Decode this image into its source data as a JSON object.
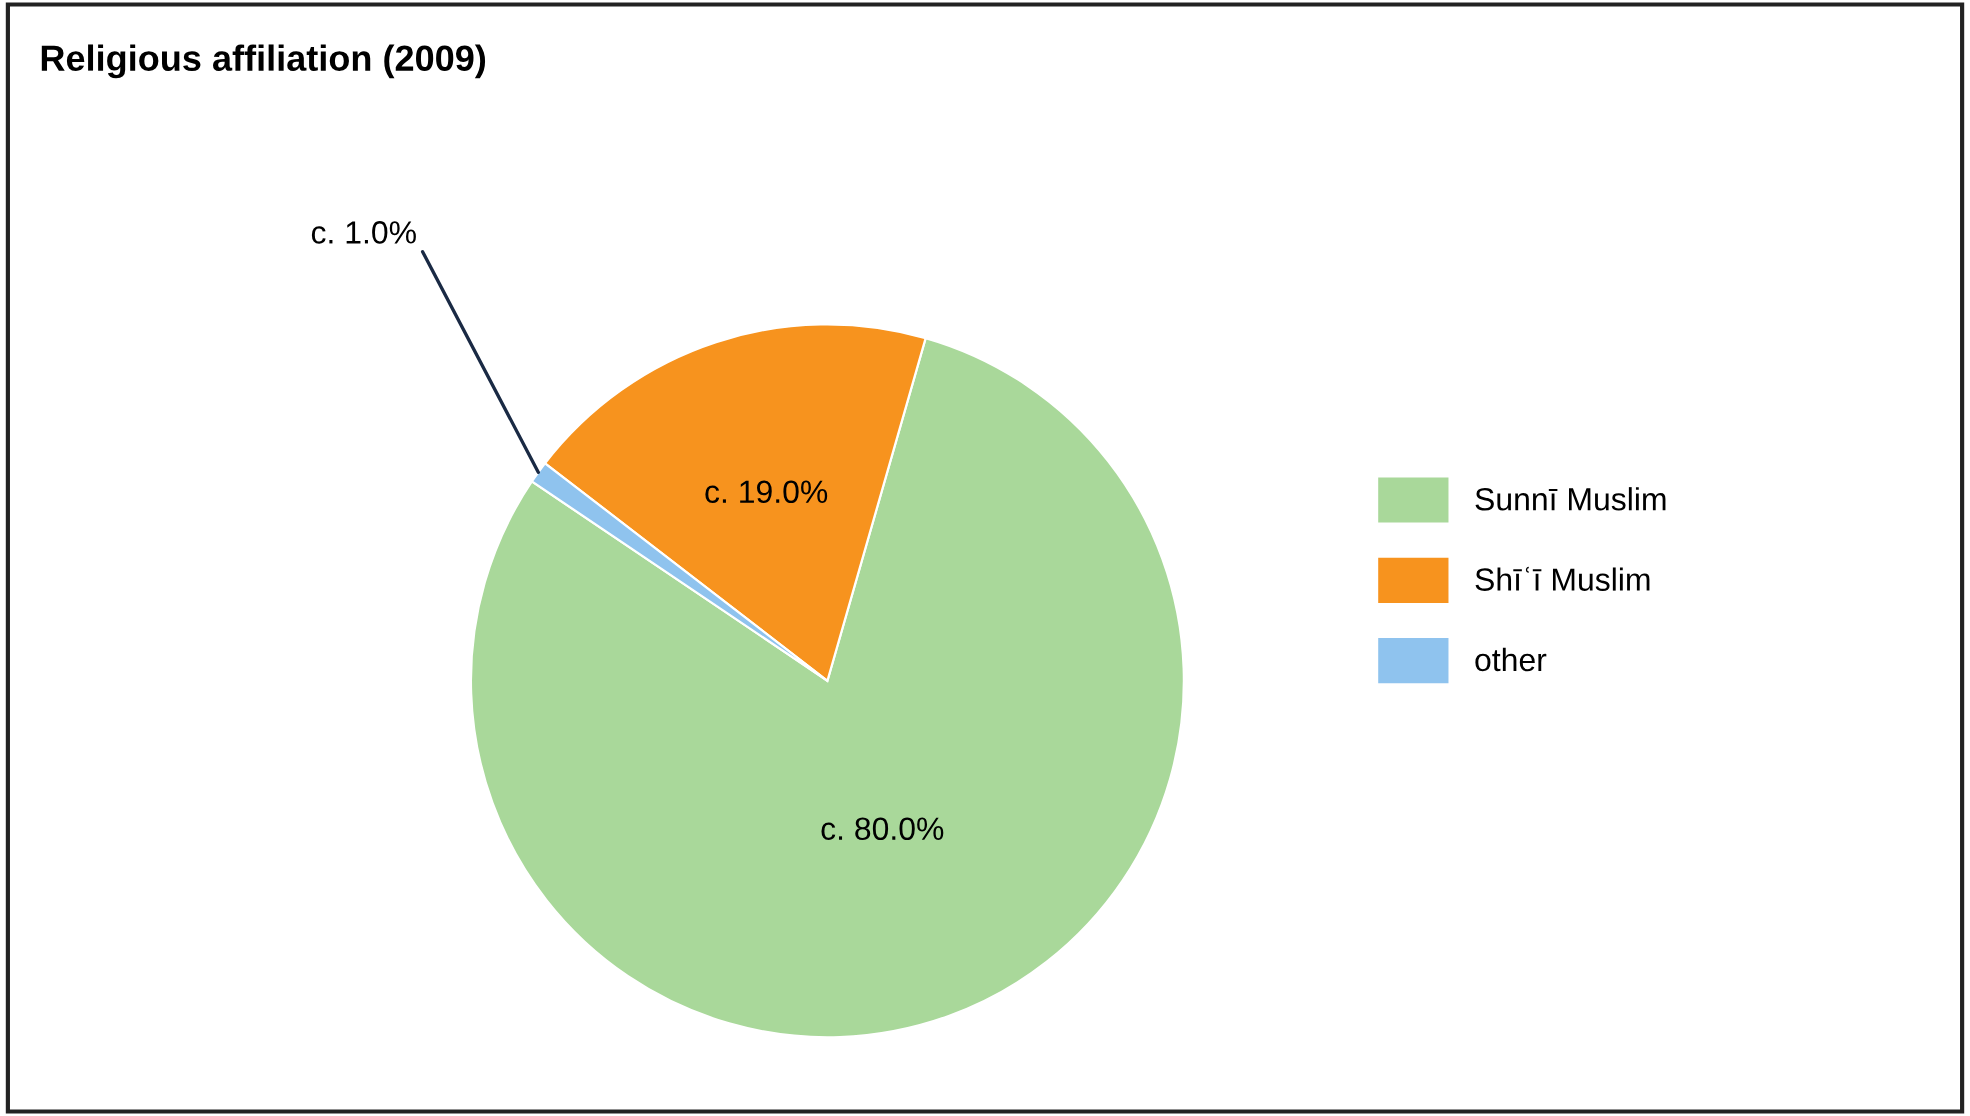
{
  "chart_data": {
    "type": "pie",
    "title": "Religious affiliation (2009)",
    "categories": [
      "Sunnī Muslim",
      "Shīʿī Muslim",
      "other"
    ],
    "values": [
      80,
      19,
      1
    ],
    "colors": [
      "#a9d89a",
      "#f7931e",
      "#8fc3ee"
    ],
    "value_labels": [
      "c. 80.0%",
      "c. 19.0%",
      "c. 1.0%"
    ],
    "legend": "right"
  }
}
